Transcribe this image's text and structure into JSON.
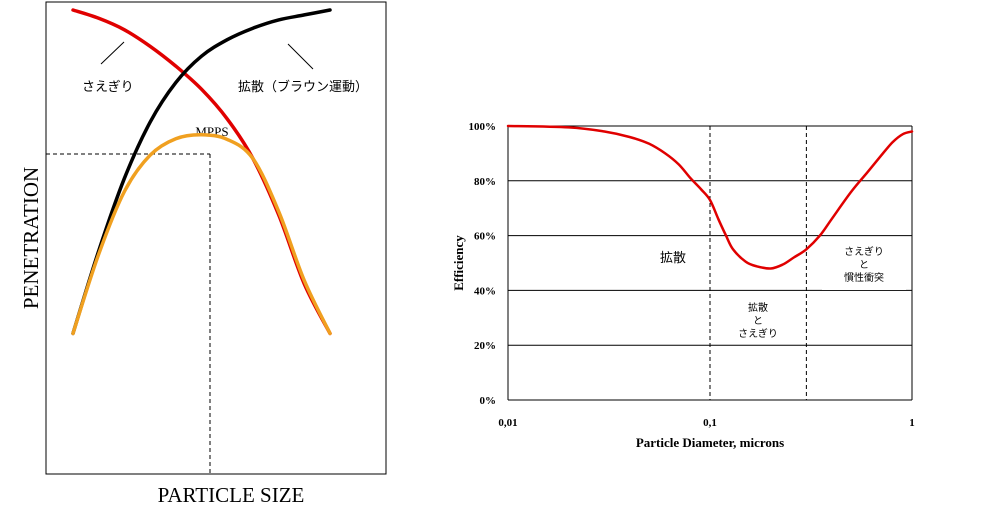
{
  "chart_data": [
    {
      "type": "line",
      "title": "",
      "xlabel": "PARTICLE SIZE",
      "ylabel": "PENETRATION",
      "xlim": [
        0,
        1
      ],
      "ylim": [
        0,
        1
      ],
      "grid": false,
      "legend": "none",
      "series": [
        {
          "name": "さえぎり",
          "color": "#e00000",
          "x": [
            0.0,
            0.1,
            0.2,
            0.3,
            0.4,
            0.5,
            0.6,
            0.7,
            0.8,
            0.9,
            1.0
          ],
          "y": [
            1.0,
            0.975,
            0.94,
            0.89,
            0.83,
            0.76,
            0.67,
            0.55,
            0.38,
            0.17,
            0.02
          ]
        },
        {
          "name": "拡散（ブラウン運動）",
          "color": "#000000",
          "x": [
            0.0,
            0.1,
            0.2,
            0.3,
            0.4,
            0.5,
            0.6,
            0.7,
            0.8,
            0.9,
            1.0
          ],
          "y": [
            0.02,
            0.27,
            0.49,
            0.66,
            0.78,
            0.86,
            0.91,
            0.945,
            0.97,
            0.985,
            1.0
          ]
        },
        {
          "name": "",
          "color": "#f0a020",
          "x": [
            0.0,
            0.1,
            0.2,
            0.3,
            0.4,
            0.5,
            0.6,
            0.7,
            0.8,
            0.9,
            1.0
          ],
          "y": [
            0.02,
            0.26,
            0.45,
            0.56,
            0.61,
            0.622,
            0.608,
            0.55,
            0.39,
            0.18,
            0.02
          ]
        }
      ],
      "annotations": {
        "mpps": {
          "text": "MPPS",
          "x": 0.5,
          "y": 0.622
        }
      }
    },
    {
      "type": "line",
      "title": "",
      "xlabel": "Particle Diameter, microns",
      "ylabel": "Efficiency",
      "x_scale": "log",
      "xlim": [
        0.01,
        1
      ],
      "ylim": [
        0,
        100
      ],
      "x_ticks": [
        "0,01",
        "0,1",
        "1"
      ],
      "y_ticks": [
        "0%",
        "20%",
        "40%",
        "60%",
        "80%",
        "100%"
      ],
      "grid": "horizontal",
      "legend": "none",
      "series": [
        {
          "name": "",
          "color": "#e00000",
          "x": [
            0.01,
            0.02,
            0.03,
            0.04,
            0.05,
            0.06,
            0.07,
            0.08,
            0.09,
            0.1,
            0.11,
            0.12,
            0.13,
            0.15,
            0.17,
            0.2,
            0.23,
            0.26,
            0.3,
            0.35,
            0.4,
            0.5,
            0.6,
            0.7,
            0.8,
            0.9,
            1.0
          ],
          "y": [
            100,
            99.5,
            98,
            96,
            93.5,
            90,
            86,
            81,
            77,
            73,
            66,
            60,
            55,
            50.5,
            48.8,
            48,
            49.5,
            52,
            55,
            60,
            66,
            76,
            83,
            89,
            94,
            97,
            98
          ]
        }
      ],
      "reference_lines_x": [
        0.1,
        0.3
      ],
      "annotations": {
        "diffusion": {
          "text": "拡散"
        },
        "mixed": {
          "lines": [
            "拡散",
            "と",
            "さえぎり"
          ]
        },
        "interception_inertia": {
          "lines": [
            "さえぎり",
            "と",
            "慣性衝突"
          ]
        }
      }
    }
  ]
}
